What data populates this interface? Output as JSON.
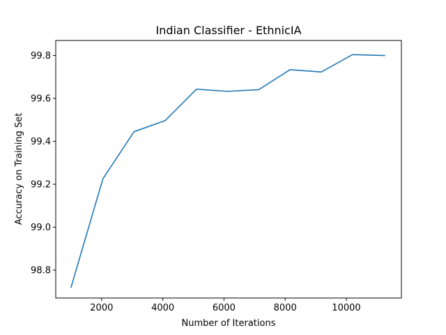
{
  "chart_data": {
    "type": "line",
    "title": "Indian Classifier - EthnicIA",
    "xlabel": "Number of Iterations",
    "ylabel": "Accuracy on Training Set",
    "xlim": [
      500,
      11800
    ],
    "ylim": [
      98.67,
      99.87
    ],
    "xticks": [
      2000,
      4000,
      6000,
      8000,
      10000
    ],
    "yticks": [
      98.8,
      99.0,
      99.2,
      99.4,
      99.6,
      99.8
    ],
    "grid": false,
    "legend": "none",
    "series": [
      {
        "color": "#1f77b4",
        "x": [
          1000,
          2040,
          3060,
          4080,
          5100,
          6120,
          7140,
          8160,
          9180,
          10200,
          11250
        ],
        "y": [
          98.72,
          99.225,
          99.445,
          99.497,
          99.643,
          99.633,
          99.641,
          99.734,
          99.723,
          99.804,
          99.8
        ]
      }
    ]
  }
}
